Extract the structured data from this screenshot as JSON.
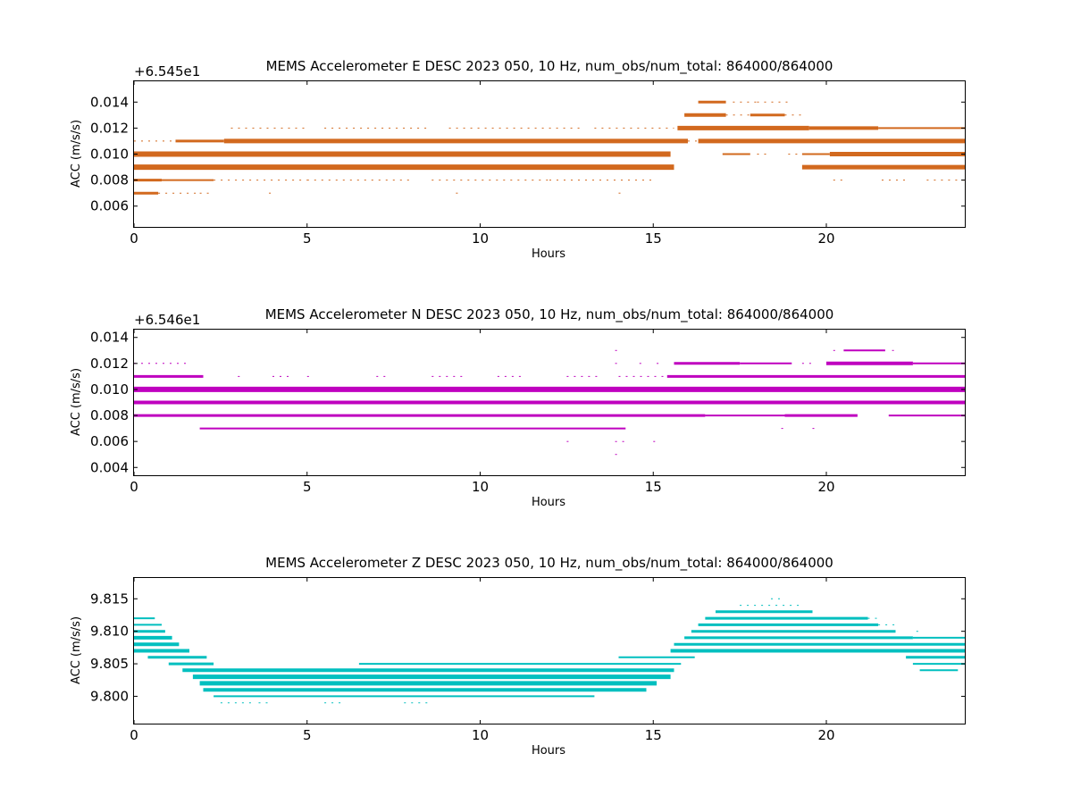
{
  "chart_data": [
    {
      "type": "scatter",
      "title": "MEMS Accelerometer E DESC 2023 050, 10 Hz, num_obs/num_total: 864000/864000",
      "xlabel": "Hours",
      "ylabel": "ACC (m/s/s)",
      "offset_text": "+6.545e1",
      "offset_value": 65.45,
      "xlim": [
        0,
        24
      ],
      "ylim": [
        0.0044,
        0.0156
      ],
      "xticks": [
        0,
        5,
        10,
        15,
        20
      ],
      "xtick_labels": [
        "0",
        "5",
        "10",
        "15",
        "20"
      ],
      "yticks": [
        0.006,
        0.008,
        0.01,
        0.012,
        0.014
      ],
      "ytick_labels": [
        "0.006",
        "0.008",
        "0.010",
        "0.012",
        "0.014"
      ],
      "color": "#d2691e",
      "series": [
        {
          "level": 0.014,
          "segments": [
            [
              16.3,
              17.1,
              3
            ],
            [
              17.3,
              18.0,
              1
            ],
            [
              18.0,
              18.9,
              1
            ]
          ]
        },
        {
          "level": 0.013,
          "segments": [
            [
              15.9,
              17.1,
              4
            ],
            [
              17.1,
              17.8,
              1
            ],
            [
              17.8,
              18.8,
              3
            ],
            [
              18.8,
              19.3,
              1
            ]
          ]
        },
        {
          "level": 0.012,
          "segments": [
            [
              2.8,
              5.0,
              1
            ],
            [
              5.5,
              8.5,
              1
            ],
            [
              9.1,
              13.0,
              1
            ],
            [
              13.3,
              15.6,
              1
            ],
            [
              15.7,
              19.5,
              5
            ],
            [
              19.5,
              21.5,
              4
            ],
            [
              21.5,
              24.0,
              2
            ]
          ]
        },
        {
          "level": 0.011,
          "segments": [
            [
              0.0,
              1.2,
              1
            ],
            [
              1.2,
              2.6,
              3
            ],
            [
              2.6,
              16.0,
              5
            ],
            [
              16.0,
              16.3,
              1
            ],
            [
              16.3,
              24.0,
              5
            ]
          ]
        },
        {
          "level": 0.01,
          "segments": [
            [
              0.0,
              15.5,
              6
            ],
            [
              17.0,
              17.8,
              2
            ],
            [
              18.0,
              18.3,
              1
            ],
            [
              18.9,
              19.2,
              1
            ],
            [
              19.3,
              20.1,
              2
            ],
            [
              20.1,
              24.0,
              5
            ]
          ]
        },
        {
          "level": 0.009,
          "segments": [
            [
              0.0,
              15.6,
              6
            ],
            [
              19.3,
              24.0,
              5
            ]
          ]
        },
        {
          "level": 0.008,
          "segments": [
            [
              0.0,
              0.8,
              3
            ],
            [
              0.8,
              2.3,
              2
            ],
            [
              2.3,
              5.0,
              1
            ],
            [
              5.0,
              8.0,
              1
            ],
            [
              8.6,
              12.0,
              1
            ],
            [
              12.0,
              15.0,
              1
            ],
            [
              20.2,
              20.6,
              1
            ],
            [
              21.6,
              22.3,
              1
            ],
            [
              22.9,
              24.0,
              1
            ]
          ]
        },
        {
          "level": 0.007,
          "segments": [
            [
              0.0,
              0.7,
              3
            ],
            [
              0.7,
              1.8,
              1
            ],
            [
              1.9,
              2.2,
              1
            ],
            [
              3.9,
              4.0,
              1
            ],
            [
              9.3,
              9.4,
              1
            ],
            [
              14.0,
              14.1,
              1
            ]
          ]
        }
      ]
    },
    {
      "type": "scatter",
      "title": "MEMS Accelerometer N DESC 2023 050, 10 Hz, num_obs/num_total: 864000/864000",
      "xlabel": "Hours",
      "ylabel": "ACC (m/s/s)",
      "offset_text": "+6.546e1",
      "offset_value": 65.46,
      "xlim": [
        0,
        24
      ],
      "ylim": [
        0.0034,
        0.0146
      ],
      "xticks": [
        0,
        5,
        10,
        15,
        20
      ],
      "xtick_labels": [
        "0",
        "5",
        "10",
        "15",
        "20"
      ],
      "yticks": [
        0.004,
        0.006,
        0.008,
        0.01,
        0.012,
        0.014
      ],
      "ytick_labels": [
        "0.004",
        "0.006",
        "0.008",
        "0.010",
        "0.012",
        "0.014"
      ],
      "color": "#bf00bf",
      "series": [
        {
          "level": 0.013,
          "segments": [
            [
              13.9,
              14.1,
              1
            ],
            [
              20.2,
              20.3,
              1
            ],
            [
              20.5,
              21.7,
              2
            ],
            [
              21.9,
              22.0,
              1
            ]
          ]
        },
        {
          "level": 0.012,
          "segments": [
            [
              0.0,
              1.5,
              1
            ],
            [
              13.9,
              14.0,
              1
            ],
            [
              14.6,
              14.7,
              1
            ],
            [
              15.1,
              15.2,
              1
            ],
            [
              15.6,
              17.5,
              3
            ],
            [
              17.5,
              19.0,
              2
            ],
            [
              19.3,
              19.7,
              1
            ],
            [
              20.0,
              22.5,
              4
            ],
            [
              22.5,
              24.0,
              2
            ]
          ]
        },
        {
          "level": 0.011,
          "segments": [
            [
              0.0,
              2.0,
              3
            ],
            [
              3.0,
              3.2,
              1
            ],
            [
              4.0,
              4.5,
              1
            ],
            [
              5.0,
              5.1,
              1
            ],
            [
              7.0,
              7.4,
              1
            ],
            [
              8.6,
              9.5,
              1
            ],
            [
              10.5,
              11.2,
              1
            ],
            [
              12.5,
              13.5,
              1
            ],
            [
              14.0,
              15.4,
              1
            ],
            [
              15.4,
              24.0,
              3
            ]
          ]
        },
        {
          "level": 0.01,
          "segments": [
            [
              0.0,
              24.0,
              6
            ]
          ]
        },
        {
          "level": 0.009,
          "segments": [
            [
              0.0,
              24.0,
              4
            ]
          ]
        },
        {
          "level": 0.008,
          "segments": [
            [
              0.0,
              16.5,
              3
            ],
            [
              16.5,
              18.8,
              2
            ],
            [
              18.8,
              20.9,
              3
            ],
            [
              21.8,
              24.0,
              2
            ]
          ]
        },
        {
          "level": 0.007,
          "segments": [
            [
              1.9,
              14.2,
              2
            ],
            [
              18.7,
              18.9,
              1
            ],
            [
              19.6,
              19.8,
              1
            ]
          ]
        },
        {
          "level": 0.006,
          "segments": [
            [
              12.5,
              12.6,
              1
            ],
            [
              13.9,
              14.2,
              1
            ],
            [
              15.0,
              15.1,
              1
            ]
          ]
        },
        {
          "level": 0.005,
          "segments": [
            [
              13.9,
              14.0,
              1
            ]
          ]
        }
      ]
    },
    {
      "type": "scatter",
      "title": "MEMS Accelerometer Z DESC 2023 050, 10 Hz, num_obs/num_total: 864000/864000",
      "xlabel": "Hours",
      "ylabel": "ACC (m/s/s)",
      "offset_text": "",
      "offset_value": 0,
      "xlim": [
        0,
        24
      ],
      "ylim": [
        9.7958,
        9.8182
      ],
      "xticks": [
        0,
        5,
        10,
        15,
        20
      ],
      "xtick_labels": [
        "0",
        "5",
        "10",
        "15",
        "20"
      ],
      "yticks": [
        9.8,
        9.805,
        9.81,
        9.815
      ],
      "ytick_labels": [
        "9.800",
        "9.805",
        "9.810",
        "9.815"
      ],
      "color": "#00bfbf",
      "series": [
        {
          "level": 9.815,
          "segments": [
            [
              18.4,
              18.8,
              1
            ]
          ]
        },
        {
          "level": 9.814,
          "segments": [
            [
              17.5,
              19.3,
              1
            ]
          ]
        },
        {
          "level": 9.813,
          "segments": [
            [
              16.8,
              19.6,
              3
            ]
          ]
        },
        {
          "level": 9.812,
          "segments": [
            [
              0.0,
              0.6,
              2
            ],
            [
              16.5,
              21.2,
              3
            ],
            [
              21.2,
              21.6,
              1
            ]
          ]
        },
        {
          "level": 9.811,
          "segments": [
            [
              0.0,
              0.8,
              2
            ],
            [
              16.3,
              21.5,
              3
            ],
            [
              21.5,
              22.0,
              1
            ]
          ]
        },
        {
          "level": 9.81,
          "segments": [
            [
              0.0,
              0.9,
              3
            ],
            [
              16.1,
              22.0,
              3
            ],
            [
              22.6,
              22.7,
              1
            ]
          ]
        },
        {
          "level": 9.809,
          "segments": [
            [
              0.0,
              1.1,
              4
            ],
            [
              15.9,
              22.5,
              3
            ],
            [
              22.5,
              24.0,
              2
            ]
          ]
        },
        {
          "level": 9.808,
          "segments": [
            [
              0.0,
              1.3,
              4
            ],
            [
              15.6,
              24.0,
              3
            ]
          ]
        },
        {
          "level": 9.807,
          "segments": [
            [
              0.0,
              1.6,
              4
            ],
            [
              15.5,
              24.0,
              4
            ]
          ]
        },
        {
          "level": 9.806,
          "segments": [
            [
              0.4,
              2.1,
              3
            ],
            [
              14.0,
              16.2,
              2
            ],
            [
              22.3,
              24.0,
              3
            ]
          ]
        },
        {
          "level": 9.805,
          "segments": [
            [
              1.0,
              2.3,
              3
            ],
            [
              6.5,
              15.8,
              2
            ],
            [
              22.5,
              24.0,
              2
            ]
          ]
        },
        {
          "level": 9.804,
          "segments": [
            [
              1.4,
              15.6,
              4
            ],
            [
              22.7,
              23.8,
              2
            ]
          ]
        },
        {
          "level": 9.803,
          "segments": [
            [
              1.7,
              15.5,
              5
            ]
          ]
        },
        {
          "level": 9.802,
          "segments": [
            [
              1.9,
              15.1,
              5
            ]
          ]
        },
        {
          "level": 9.801,
          "segments": [
            [
              2.0,
              14.8,
              4
            ]
          ]
        },
        {
          "level": 9.8,
          "segments": [
            [
              2.3,
              13.3,
              2
            ]
          ]
        },
        {
          "level": 9.799,
          "segments": [
            [
              2.5,
              3.5,
              1
            ],
            [
              3.6,
              3.9,
              1
            ],
            [
              5.5,
              6.0,
              1
            ],
            [
              7.8,
              8.5,
              1
            ]
          ]
        }
      ]
    }
  ]
}
